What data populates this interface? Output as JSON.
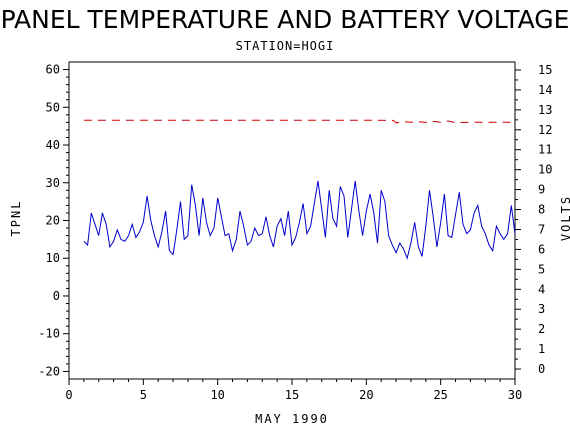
{
  "chart_data": {
    "type": "line",
    "title": "PANEL TEMPERATURE AND BATTERY VOLTAGE",
    "subtitle": "STATION=HOGI",
    "xlabel": "MAY 1990",
    "ylabel_left": "TPNL",
    "ylabel_right": "VOLTS",
    "xlim": [
      0,
      30
    ],
    "ylim_left": [
      -22,
      62
    ],
    "ylim_right": [
      -0.5,
      15.4
    ],
    "x_ticks": [
      0,
      5,
      10,
      15,
      20,
      25,
      30
    ],
    "y_left_ticks": [
      -20,
      -10,
      0,
      10,
      20,
      30,
      40,
      50,
      60
    ],
    "y_right_ticks": [
      0,
      1,
      2,
      3,
      4,
      5,
      6,
      7,
      8,
      9,
      10,
      11,
      12,
      13,
      14,
      15
    ],
    "series": [
      {
        "color": "#0000cc",
        "axis": "left",
        "style": "solid",
        "x": [
          1.0,
          1.25,
          1.5,
          1.75,
          2.0,
          2.25,
          2.5,
          2.75,
          3.0,
          3.25,
          3.5,
          3.75,
          4.0,
          4.25,
          4.5,
          4.75,
          5.0,
          5.25,
          5.5,
          5.75,
          6.0,
          6.25,
          6.5,
          6.75,
          7.0,
          7.25,
          7.5,
          7.75,
          8.0,
          8.25,
          8.5,
          8.75,
          9.0,
          9.25,
          9.5,
          9.75,
          10.0,
          10.25,
          10.5,
          10.75,
          11.0,
          11.25,
          11.5,
          11.75,
          12.0,
          12.25,
          12.5,
          12.75,
          13.0,
          13.25,
          13.5,
          13.75,
          14.0,
          14.25,
          14.5,
          14.75,
          15.0,
          15.25,
          15.5,
          15.75,
          16.0,
          16.25,
          16.5,
          16.75,
          17.0,
          17.25,
          17.5,
          17.75,
          18.0,
          18.25,
          18.5,
          18.75,
          19.0,
          19.25,
          19.5,
          19.75,
          20.0,
          20.25,
          20.5,
          20.75,
          21.0,
          21.25,
          21.5,
          21.75,
          22.0,
          22.25,
          22.5,
          22.75,
          23.0,
          23.25,
          23.5,
          23.75,
          24.0,
          24.25,
          24.5,
          24.75,
          25.0,
          25.25,
          25.5,
          25.75,
          26.0,
          26.25,
          26.5,
          26.75,
          27.0,
          27.25,
          27.5,
          27.75,
          28.0,
          28.25,
          28.5,
          28.75,
          29.0,
          29.25,
          29.5,
          29.75,
          30.0
        ],
        "y": [
          14.5,
          13.5,
          22.0,
          19.0,
          16.0,
          22.0,
          19.0,
          13.0,
          14.5,
          17.5,
          15.0,
          14.5,
          16.0,
          19.0,
          15.5,
          17.0,
          19.5,
          26.5,
          20.0,
          16.0,
          13.0,
          17.0,
          22.5,
          12.0,
          11.0,
          17.5,
          25.0,
          15.0,
          16.0,
          29.5,
          24.0,
          16.0,
          26.0,
          19.5,
          16.0,
          18.0,
          26.0,
          21.0,
          16.0,
          16.5,
          12.0,
          15.0,
          22.5,
          18.5,
          13.5,
          14.5,
          18.0,
          16.0,
          16.5,
          21.0,
          16.0,
          13.0,
          18.5,
          20.5,
          16.0,
          22.5,
          13.5,
          15.5,
          19.5,
          24.5,
          16.5,
          18.5,
          24.5,
          30.5,
          23.0,
          15.5,
          28.0,
          20.5,
          18.5,
          29.0,
          26.5,
          15.5,
          23.0,
          30.5,
          22.5,
          16.0,
          22.5,
          27.0,
          22.0,
          14.0,
          28.0,
          25.0,
          16.0,
          13.5,
          11.5,
          14.0,
          12.5,
          10.0,
          14.0,
          19.5,
          13.0,
          10.5,
          18.5,
          28.0,
          21.0,
          13.0,
          19.5,
          27.0,
          16.0,
          15.5,
          21.5,
          27.5,
          19.0,
          16.5,
          17.5,
          22.0,
          24.0,
          18.5,
          16.5,
          13.5,
          12.0,
          18.5,
          16.5,
          15.0,
          16.5,
          24.0,
          16.5
        ]
      },
      {
        "color": "#cc0000",
        "axis": "right",
        "style": "dashed",
        "x": [
          1.0,
          5.0,
          10.0,
          15.0,
          20.0,
          21.8,
          22.0,
          22.5,
          23.0,
          23.5,
          24.0,
          24.5,
          25.0,
          25.5,
          26.0,
          27.0,
          28.0,
          29.0,
          30.0
        ],
        "y": [
          12.48,
          12.48,
          12.48,
          12.48,
          12.48,
          12.47,
          12.35,
          12.4,
          12.38,
          12.4,
          12.37,
          12.42,
          12.38,
          12.44,
          12.36,
          12.38,
          12.38,
          12.38,
          12.38
        ]
      }
    ]
  }
}
